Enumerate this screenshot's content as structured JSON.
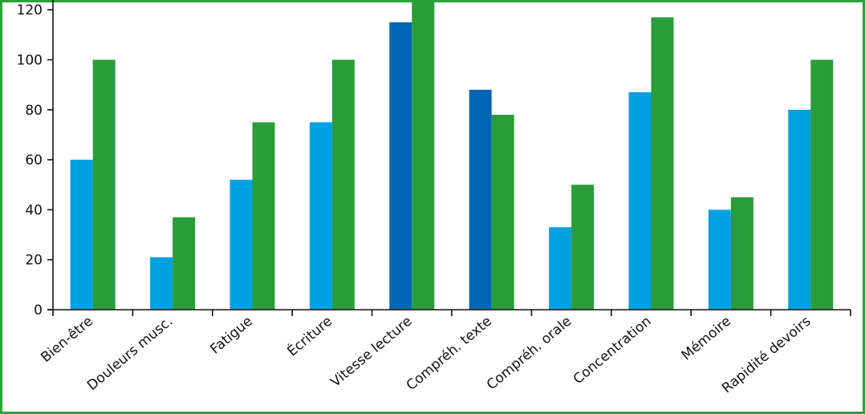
{
  "chart_data": {
    "type": "bar",
    "categories": [
      "Bien-être",
      "Douleurs musc.",
      "Fatigue",
      "Écriture",
      "Vitesse lecture",
      "Compréh. texte",
      "Compréh. orale",
      "Concentration",
      "Mémoire",
      "Rapidité devoirs"
    ],
    "series": [
      {
        "values": [
          60,
          21,
          52,
          75,
          115,
          88,
          33,
          87,
          40,
          80
        ]
      },
      {
        "values": [
          100,
          37,
          75,
          100,
          126,
          78,
          50,
          117,
          45,
          100
        ]
      }
    ],
    "series_colors": [
      "#00a0e3",
      "#2a9d3a"
    ],
    "highlight_color": "#0066b3",
    "highlight_indices": [
      4,
      5
    ],
    "yticks": [
      0,
      20,
      40,
      60,
      80,
      100,
      120
    ],
    "ylim": [
      0,
      126
    ],
    "axis_color": "#111111",
    "frame_color": "#2aa33a"
  }
}
